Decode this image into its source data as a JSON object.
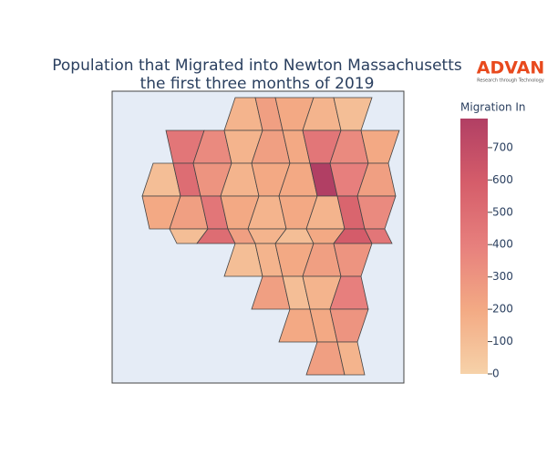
{
  "chart_data": {
    "type": "choropleth",
    "title": [
      "Population that Migrated into Newton Massachusetts",
      "the first three months of 2019"
    ],
    "logo": {
      "name": "ADVAN",
      "tagline": "Research through Technology"
    },
    "colorbar_title": "Migration In",
    "values": [
      150,
      250,
      200,
      150,
      100,
      450,
      350,
      150,
      250,
      200,
      450,
      350,
      200,
      100,
      500,
      300,
      150,
      200,
      200,
      790,
      400,
      250,
      200,
      250,
      450,
      200,
      150,
      200,
      150,
      550,
      350,
      100,
      500,
      250,
      150,
      100,
      200,
      600,
      450,
      100,
      150,
      200,
      250,
      300,
      250,
      100,
      150,
      400,
      200,
      200,
      300,
      250,
      150
    ],
    "zlim": [
      0,
      790
    ],
    "colorbar_ticks": [
      0,
      100,
      200,
      300,
      400,
      500,
      600,
      700
    ],
    "colorscale": [
      "#f6d2a9",
      "#f3aa84",
      "#e7807d",
      "#d55d6a",
      "#b13f64"
    ],
    "map_background": "#e5ecf6",
    "border_color": "#444444"
  }
}
